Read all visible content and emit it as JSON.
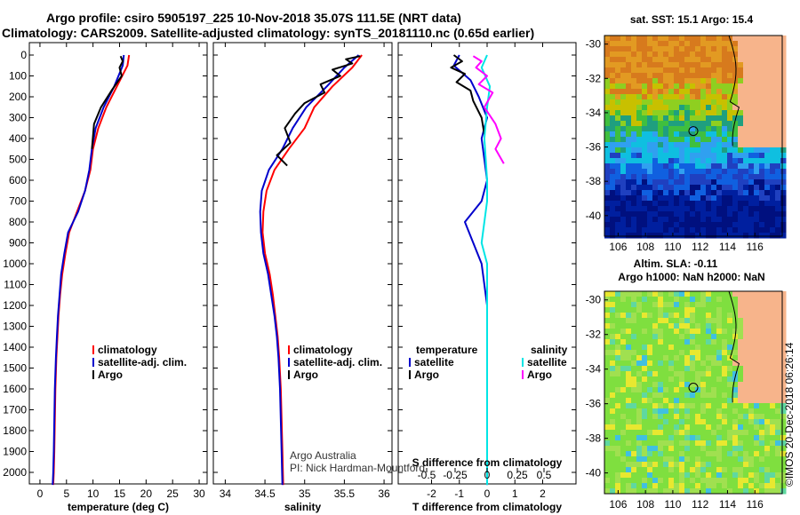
{
  "header": {
    "line1": "Argo profile: csiro 5905197_225 10-Nov-2018 35.07S 111.5E (NRT data)",
    "line2": "Climatology: CARS2009. Satellite-adjusted climatology: synTS_20181110.nc (0.65d earlier)"
  },
  "colors": {
    "climatology": "#ff0000",
    "satellite": "#0000cc",
    "argo": "#000000",
    "sat_salinity": "#00e5e5",
    "argo_salinity": "#ff00ff"
  },
  "chart_data": [
    {
      "type": "line",
      "id": "temperature",
      "xlabel": "temperature (deg C)",
      "ylabel": "",
      "xlim": [
        -2,
        31.5
      ],
      "ylim": [
        2070,
        0
      ],
      "xticks": [
        0,
        5,
        10,
        15,
        20,
        25,
        30
      ],
      "yticks": [
        0,
        100,
        200,
        300,
        400,
        500,
        600,
        700,
        800,
        900,
        1000,
        1100,
        1200,
        1300,
        1400,
        1500,
        1600,
        1700,
        1800,
        1900,
        2000
      ],
      "legend": [
        "climatology",
        "satellite-adj. clim.",
        "Argo"
      ],
      "series": [
        {
          "name": "climatology",
          "color": "#ff0000",
          "x": [
            16.8,
            16.5,
            14.5,
            12.5,
            11.0,
            10.0,
            9.5,
            8.5,
            7.0,
            5.5,
            4.8,
            4.2,
            3.8,
            3.5,
            3.3,
            3.1,
            2.9,
            2.8,
            2.7,
            2.6,
            2.5
          ],
          "y": [
            0,
            50,
            150,
            250,
            350,
            450,
            550,
            650,
            750,
            850,
            950,
            1050,
            1150,
            1250,
            1350,
            1450,
            1600,
            1750,
            1900,
            2000,
            2060
          ]
        },
        {
          "name": "satellite-adj. clim.",
          "color": "#0000cc",
          "x": [
            15.8,
            15.6,
            14.0,
            12.0,
            10.5,
            9.8,
            9.3,
            8.5,
            7.2,
            5.3,
            4.6,
            4.0,
            3.7,
            3.4,
            3.2,
            3.0,
            2.8,
            2.7,
            2.6,
            2.5,
            2.4
          ],
          "y": [
            0,
            50,
            150,
            250,
            350,
            450,
            550,
            650,
            750,
            850,
            950,
            1050,
            1150,
            1250,
            1350,
            1450,
            1600,
            1750,
            1900,
            2000,
            2060
          ]
        },
        {
          "name": "Argo",
          "color": "#000000",
          "x": [
            15.2,
            15.6,
            15.0,
            15.4,
            13.5,
            11.5,
            10.2,
            9.8
          ],
          "y": [
            5,
            30,
            60,
            100,
            170,
            250,
            330,
            450
          ]
        }
      ]
    },
    {
      "type": "line",
      "id": "salinity",
      "xlabel": "salinity",
      "ylabel": "",
      "xlim": [
        33.85,
        36.1
      ],
      "ylim": [
        2070,
        0
      ],
      "xticks": [
        34,
        34.5,
        35,
        35.5,
        36
      ],
      "legend": [
        "climatology",
        "satellite-adj. clim.",
        "Argo"
      ],
      "annotation": [
        "Argo Australia",
        "PI: Nick Hardman-Mountford"
      ],
      "series": [
        {
          "name": "climatology",
          "color": "#ff0000",
          "x": [
            35.72,
            35.6,
            35.35,
            35.12,
            35.0,
            34.8,
            34.62,
            34.52,
            34.48,
            34.47,
            34.5,
            34.56,
            34.6,
            34.63,
            34.66,
            34.68,
            34.7,
            34.71,
            34.72,
            34.73
          ],
          "y": [
            0,
            60,
            150,
            250,
            350,
            450,
            550,
            650,
            750,
            850,
            950,
            1050,
            1150,
            1250,
            1350,
            1450,
            1600,
            1750,
            1900,
            2060
          ]
        },
        {
          "name": "satellite-adj. clim.",
          "color": "#0000cc",
          "x": [
            35.68,
            35.5,
            35.28,
            35.02,
            34.85,
            34.72,
            34.55,
            34.46,
            34.44,
            34.45,
            34.48,
            34.54,
            34.58,
            34.62,
            34.65,
            34.67,
            34.69,
            34.7,
            34.71,
            34.72
          ],
          "y": [
            0,
            60,
            150,
            250,
            350,
            450,
            550,
            650,
            750,
            850,
            950,
            1050,
            1150,
            1250,
            1350,
            1450,
            1600,
            1750,
            1900,
            2060
          ]
        },
        {
          "name": "Argo",
          "color": "#000000",
          "x": [
            35.7,
            35.52,
            35.6,
            35.35,
            35.45,
            35.2,
            35.25,
            35.0,
            34.88,
            34.75,
            34.82,
            34.65,
            34.78
          ],
          "y": [
            5,
            20,
            40,
            70,
            100,
            140,
            180,
            230,
            280,
            350,
            420,
            480,
            530
          ]
        }
      ]
    },
    {
      "type": "line",
      "id": "difference",
      "xlabel": "T difference from climatology",
      "xlabel2": "S difference from climatology",
      "xlim": [
        -3.2,
        3.2
      ],
      "ylim": [
        2070,
        0
      ],
      "xticks": [
        -2,
        -1,
        0,
        1,
        2
      ],
      "xtick_labels": [
        "-2",
        "-1",
        "0",
        "1",
        "2"
      ],
      "sticks_labels": [
        "-0.5",
        "-0.25",
        "0",
        "0.25",
        "0.5"
      ],
      "legend_left": [
        "temperature",
        "satellite",
        "Argo"
      ],
      "legend_right": [
        "salinity",
        "satellite",
        "Argo"
      ],
      "series": [
        {
          "name": "satellite",
          "color": "#0000cc",
          "x": [
            -1.0,
            -1.2,
            -0.6,
            -0.3,
            0.0,
            -0.2,
            -0.1,
            0.0,
            -0.2,
            -0.8,
            -0.5,
            -0.2,
            -0.1,
            0.0,
            0.0,
            0.0,
            0.0
          ],
          "y": [
            0,
            50,
            120,
            200,
            300,
            400,
            500,
            600,
            700,
            800,
            900,
            1000,
            1100,
            1200,
            1400,
            1700,
            2060
          ]
        },
        {
          "name": "Argo",
          "color": "#000000",
          "x": [
            -1.2,
            -0.9,
            -1.3,
            -0.8,
            -1.1,
            -0.6,
            -0.5,
            -0.2,
            -0.1
          ],
          "y": [
            0,
            30,
            60,
            90,
            130,
            170,
            220,
            300,
            380
          ]
        },
        {
          "name": "satellite",
          "color": "#00e5e5",
          "x": [
            0.0,
            -0.2,
            0.1,
            0.0,
            -0.1,
            0.0,
            0.0,
            -0.1,
            -0.2,
            0.0,
            0.0,
            0.0,
            0.0
          ],
          "y": [
            0,
            60,
            150,
            250,
            400,
            600,
            700,
            800,
            900,
            1000,
            1200,
            1600,
            2060
          ]
        },
        {
          "name": "Argo",
          "color": "#ff00ff",
          "x": [
            -0.5,
            -0.2,
            -0.4,
            0.0,
            -0.3,
            0.2,
            -0.1,
            0.3,
            0.5,
            0.3,
            0.6
          ],
          "y": [
            5,
            30,
            60,
            100,
            140,
            180,
            250,
            330,
            400,
            450,
            520
          ]
        }
      ]
    },
    {
      "type": "heatmap",
      "id": "sst-map",
      "title": "sat. SST: 15.1 Argo: 15.4",
      "xlim": [
        105,
        118
      ],
      "ylim": [
        -41.2,
        -29.5
      ],
      "xticks": [
        106,
        108,
        110,
        112,
        114,
        116
      ],
      "yticks": [
        -30,
        -32,
        -34,
        -36,
        -38,
        -40
      ],
      "marker": {
        "lon": 111.5,
        "lat": -35.07
      }
    },
    {
      "type": "heatmap",
      "id": "sla-map",
      "title": "Altim. SLA: -0.11",
      "subtitle": "Argo h1000: NaN h2000: NaN",
      "xlim": [
        105,
        118
      ],
      "ylim": [
        -41.2,
        -29.5
      ],
      "xticks": [
        106,
        108,
        110,
        112,
        114,
        116
      ],
      "yticks": [
        -30,
        -32,
        -34,
        -36,
        -38,
        -40
      ],
      "marker": {
        "lon": 111.5,
        "lat": -35.07
      }
    }
  ],
  "footer": {
    "imos_stamp": "©IMOS 20-Dec-2018 06:26:14"
  }
}
